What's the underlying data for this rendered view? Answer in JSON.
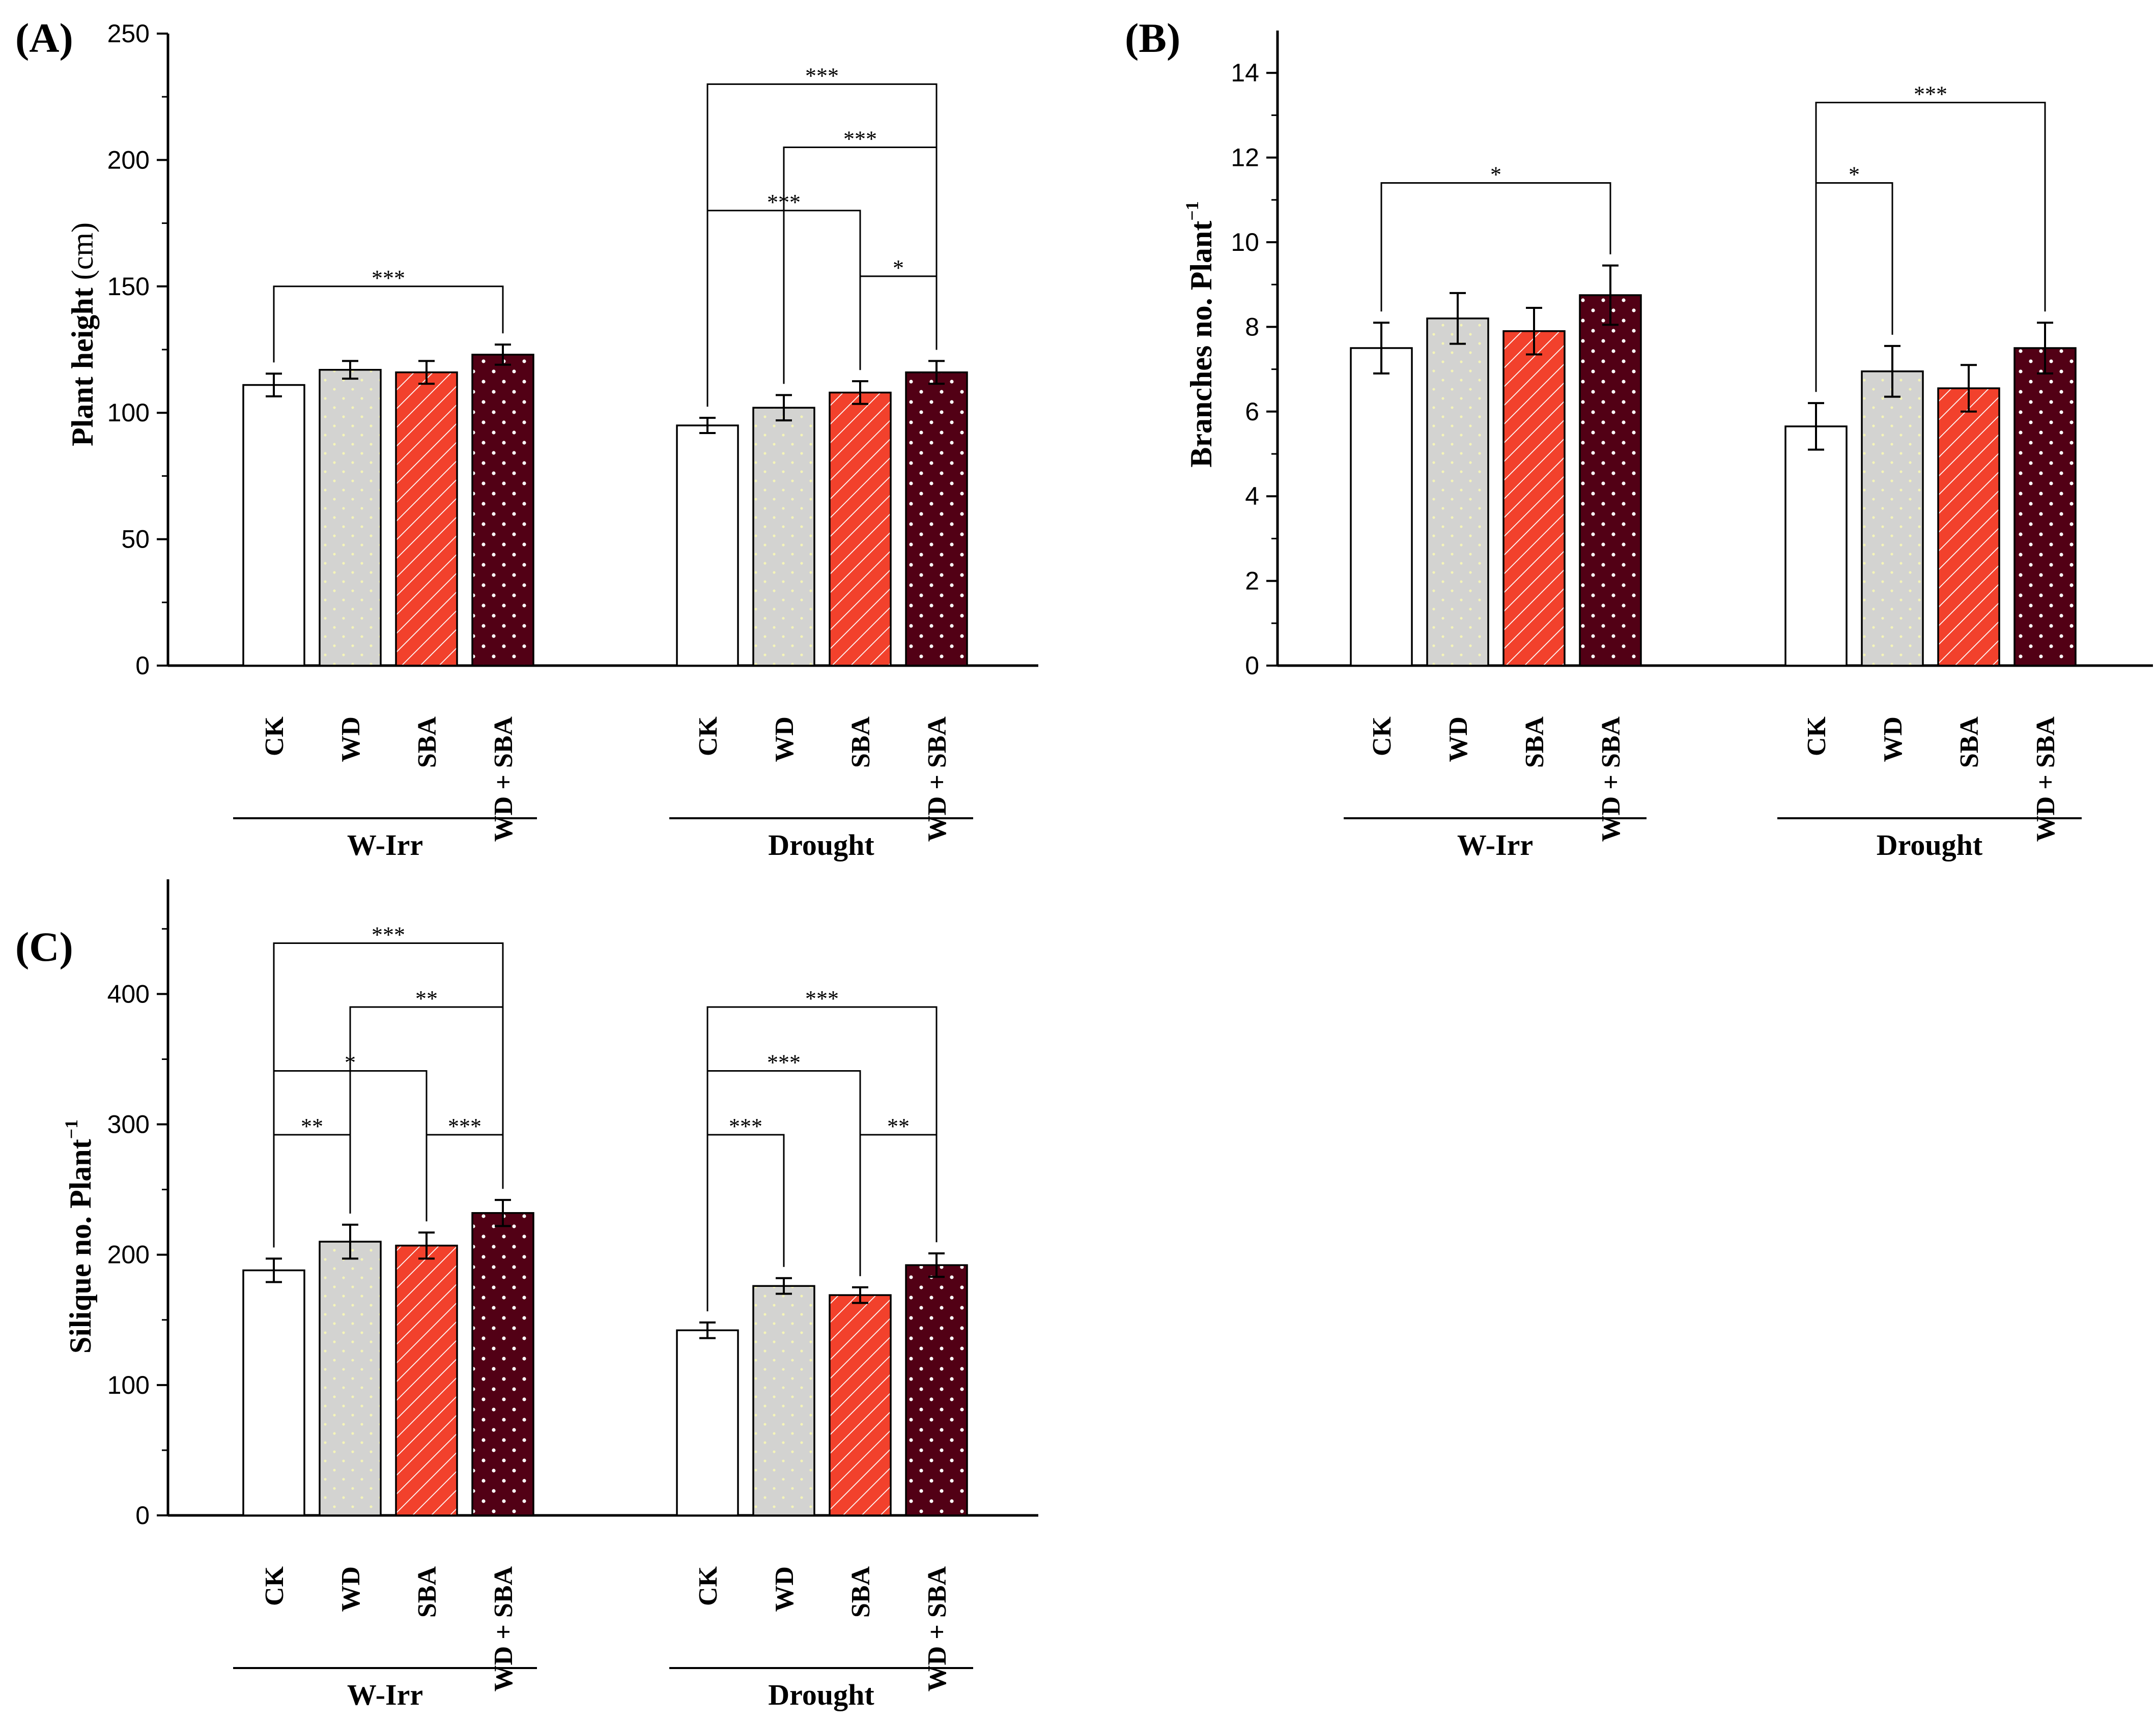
{
  "colors": {
    "ck": "#ffffff",
    "wd": "#d3d3d1",
    "sba": "#f2412c",
    "wdsba": "#520015",
    "axis": "#000000"
  },
  "chart_data": [
    {
      "id": "A",
      "type": "bar",
      "panel_label": "(A)",
      "ylabel_main": "Plant height",
      "ylabel_unit": "(cm)",
      "ylabel_sup": "",
      "ylim": [
        0,
        250
      ],
      "yticks": [
        0,
        50,
        100,
        150,
        200,
        250
      ],
      "ytick_labels": [
        "0",
        "50",
        "100",
        "150",
        "200",
        "250"
      ],
      "minor_step": 25,
      "categories": [
        "CK",
        "WD",
        "SBA",
        "WD + SBA"
      ],
      "groups": [
        {
          "name": "W-Irr",
          "values": [
            111,
            117,
            116,
            123
          ],
          "errors": [
            4.5,
            3.5,
            4.5,
            4
          ]
        },
        {
          "name": "Drought",
          "values": [
            95,
            102,
            108,
            116
          ],
          "errors": [
            3,
            5,
            4.5,
            4.5
          ]
        }
      ],
      "significance": [
        {
          "group": 0,
          "from": 0,
          "to": 3,
          "level": 150,
          "label": "***"
        },
        {
          "group": 1,
          "from": 0,
          "to": 3,
          "level": 230,
          "label": "***"
        },
        {
          "group": 1,
          "from": 1,
          "to": 3,
          "level": 205,
          "label": "***"
        },
        {
          "group": 1,
          "from": 0,
          "to": 2,
          "level": 180,
          "label": "***"
        },
        {
          "group": 1,
          "from": 2,
          "to": 3,
          "level": 154,
          "label": "*"
        }
      ]
    },
    {
      "id": "B",
      "type": "bar",
      "panel_label": "(B)",
      "ylabel_main": "Branches no. Plant",
      "ylabel_unit": "",
      "ylabel_sup": "−1",
      "ylim": [
        0,
        15
      ],
      "yticks": [
        0,
        2,
        4,
        6,
        8,
        10,
        12,
        14
      ],
      "ytick_labels": [
        "0",
        "2",
        "4",
        "6",
        "8",
        "10",
        "12",
        "14"
      ],
      "minor_step": 1,
      "categories": [
        "CK",
        "WD",
        "SBA",
        "WD + SBA"
      ],
      "groups": [
        {
          "name": "W-Irr",
          "values": [
            7.5,
            8.2,
            7.9,
            8.75
          ],
          "errors": [
            0.6,
            0.6,
            0.55,
            0.7
          ]
        },
        {
          "name": "Drought",
          "values": [
            5.65,
            6.95,
            6.55,
            7.5
          ],
          "errors": [
            0.55,
            0.6,
            0.55,
            0.6
          ]
        }
      ],
      "significance": [
        {
          "group": 0,
          "from": 0,
          "to": 3,
          "level": 11.4,
          "label": "*"
        },
        {
          "group": 1,
          "from": 0,
          "to": 3,
          "level": 13.3,
          "label": "***"
        },
        {
          "group": 1,
          "from": 0,
          "to": 1,
          "level": 11.4,
          "label": "*"
        }
      ]
    },
    {
      "id": "C",
      "type": "bar",
      "panel_label": "(C)",
      "ylabel_main": "Silique no. Plant",
      "ylabel_unit": "",
      "ylabel_sup": "−1",
      "ylim": [
        0,
        488
      ],
      "yticks": [
        0,
        100,
        200,
        300,
        400
      ],
      "ytick_labels": [
        "0",
        "100",
        "200",
        "300",
        "400"
      ],
      "minor_step": 50,
      "categories": [
        "CK",
        "WD",
        "SBA",
        "WD + SBA"
      ],
      "groups": [
        {
          "name": "W-Irr",
          "values": [
            188,
            210,
            207,
            232
          ],
          "errors": [
            9,
            13,
            10,
            10
          ]
        },
        {
          "name": "Drought",
          "values": [
            142,
            176,
            169,
            192
          ],
          "errors": [
            6,
            6,
            6,
            9
          ]
        }
      ],
      "significance": [
        {
          "group": 0,
          "from": 0,
          "to": 3,
          "level": 439,
          "label": "***"
        },
        {
          "group": 0,
          "from": 1,
          "to": 3,
          "level": 390,
          "label": "**"
        },
        {
          "group": 0,
          "from": 0,
          "to": 2,
          "level": 341,
          "label": "*"
        },
        {
          "group": 0,
          "from": 0,
          "to": 1,
          "level": 292,
          "label": "**"
        },
        {
          "group": 0,
          "from": 2,
          "to": 3,
          "level": 292,
          "label": "***"
        },
        {
          "group": 1,
          "from": 0,
          "to": 3,
          "level": 390,
          "label": "***"
        },
        {
          "group": 1,
          "from": 0,
          "to": 2,
          "level": 341,
          "label": "***"
        },
        {
          "group": 1,
          "from": 0,
          "to": 1,
          "level": 292,
          "label": "***"
        },
        {
          "group": 1,
          "from": 2,
          "to": 3,
          "level": 292,
          "label": "**"
        }
      ]
    }
  ]
}
